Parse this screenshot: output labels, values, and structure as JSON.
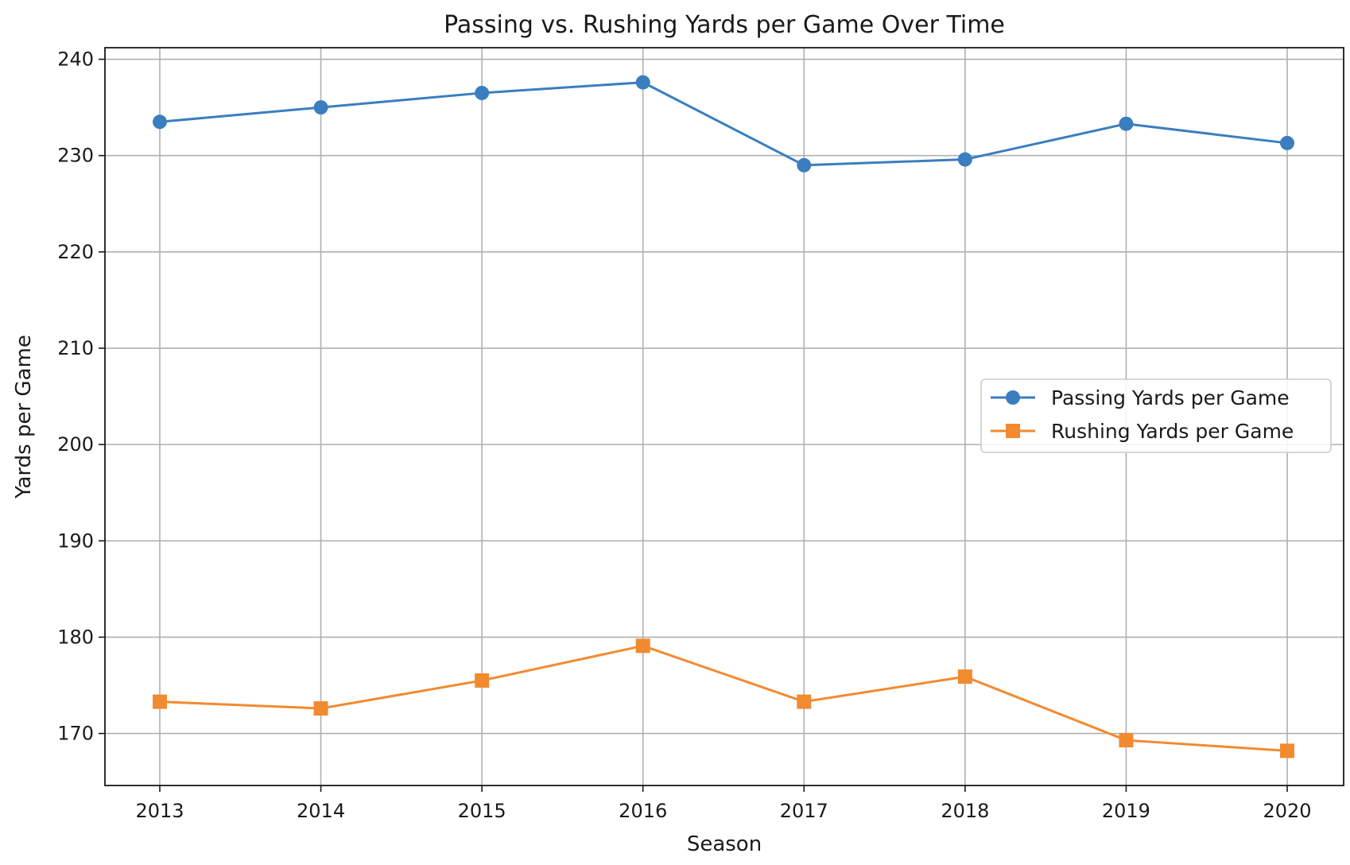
{
  "chart_data": {
    "type": "line",
    "title": "Passing vs. Rushing Yards per Game Over Time",
    "xlabel": "Season",
    "ylabel": "Yards per Game",
    "categories": [
      "2013",
      "2014",
      "2015",
      "2016",
      "2017",
      "2018",
      "2019",
      "2020"
    ],
    "yticks": [
      170,
      180,
      190,
      200,
      210,
      220,
      230,
      240
    ],
    "ylim": [
      164.6,
      241.2
    ],
    "grid": true,
    "legend_position": "center-right",
    "series": [
      {
        "name": "Passing Yards per Game",
        "values": [
          233.5,
          235.0,
          236.5,
          237.6,
          229.0,
          229.6,
          233.3,
          231.3
        ],
        "color": "#3a7ebf",
        "marker": "circle"
      },
      {
        "name": "Rushing Yards per Game",
        "values": [
          173.3,
          172.6,
          175.5,
          179.1,
          173.3,
          175.9,
          169.3,
          168.2
        ],
        "color": "#f28a30",
        "marker": "square"
      }
    ]
  }
}
